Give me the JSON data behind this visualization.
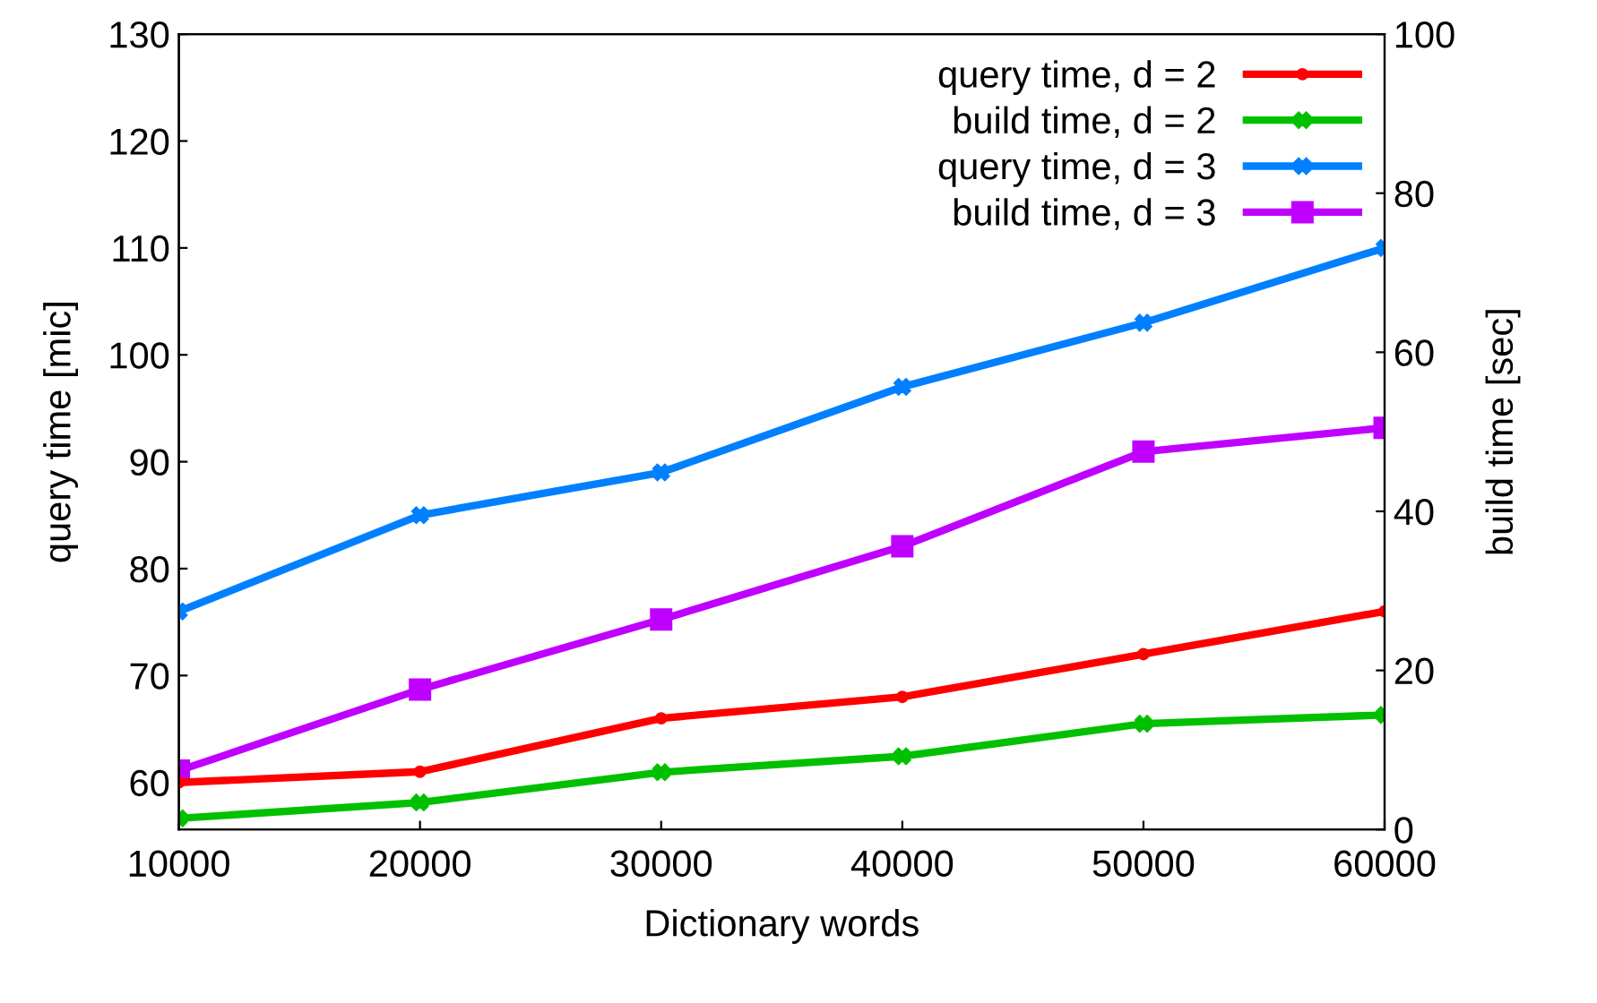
{
  "chart_data": {
    "type": "line",
    "xlabel": "Dictionary words",
    "ylabel": "query time [mic]",
    "y2label": "build time [sec]",
    "x": [
      10000,
      20000,
      30000,
      40000,
      50000,
      60000
    ],
    "series": [
      {
        "name": "query time, d = 2",
        "color": "#ff0000",
        "marker": "circle",
        "values": [
          60,
          61,
          66,
          68,
          72,
          76
        ]
      },
      {
        "name": "build time, d = 2",
        "color": "#00c000",
        "marker": "cross",
        "axis": "y2",
        "values": [
          1.4,
          3.4,
          7.2,
          9.2,
          13.3,
          14.4
        ]
      },
      {
        "name": "query time, d = 3",
        "color": "#0080ff",
        "marker": "cross",
        "values": [
          76,
          85,
          89,
          97,
          103,
          110
        ]
      },
      {
        "name": "build time, d = 3",
        "color": "#c000ff",
        "marker": "square",
        "axis": "y2",
        "values": [
          7.4,
          17.6,
          26.4,
          35.6,
          47.5,
          50.5
        ]
      }
    ],
    "xlim": [
      10000,
      60000
    ],
    "xticks": [
      10000,
      20000,
      30000,
      40000,
      50000,
      60000
    ],
    "ylim": [
      55.6,
      130
    ],
    "yticks": [
      60,
      70,
      80,
      90,
      100,
      110,
      120,
      130
    ],
    "y2lim": [
      0,
      100
    ],
    "y2ticks": [
      0,
      20,
      40,
      60,
      80,
      100
    ],
    "legend": "top right",
    "grid": false,
    "line_style": "solid"
  }
}
